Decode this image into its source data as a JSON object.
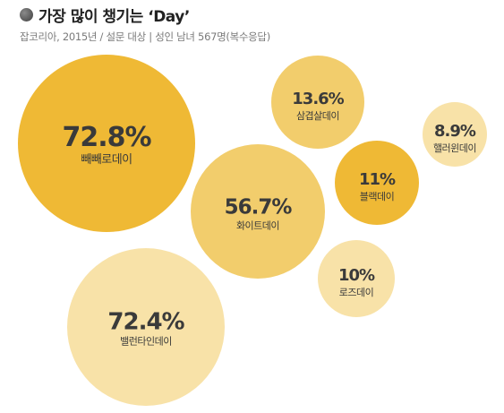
{
  "header": {
    "title": "가장 많이 챙기는 ‘Day’",
    "subtitle": "잡코리아, 2015년 / 설문 대상 | 성인 남녀 567명(복수응답)"
  },
  "colors": {
    "strong": "#efb935",
    "medium": "#f2cd6c",
    "light": "#f8e2a8"
  },
  "chart_data": {
    "type": "bubble",
    "title": "가장 많이 챙기는 ‘Day’",
    "subtitle": "잡코리아, 2015년 / 설문 대상 | 성인 남녀 567명(복수응답)",
    "unit": "%",
    "series": [
      {
        "label": "빼빼로데이",
        "value": 72.8,
        "value_text": "72.8%",
        "color": "#efb935"
      },
      {
        "label": "밸런타인데이",
        "value": 72.4,
        "value_text": "72.4%",
        "color": "#f8e2a8"
      },
      {
        "label": "화이트데이",
        "value": 56.7,
        "value_text": "56.7%",
        "color": "#f2cd6c"
      },
      {
        "label": "삼겹살데이",
        "value": 13.6,
        "value_text": "13.6%",
        "color": "#f2cd6c"
      },
      {
        "label": "블랙데이",
        "value": 11,
        "value_text": "11%",
        "color": "#efb935"
      },
      {
        "label": "로즈데이",
        "value": 10,
        "value_text": "10%",
        "color": "#f8e2a8"
      },
      {
        "label": "핼러윈데이",
        "value": 8.9,
        "value_text": "8.9%",
        "color": "#f8e2a8"
      }
    ]
  }
}
